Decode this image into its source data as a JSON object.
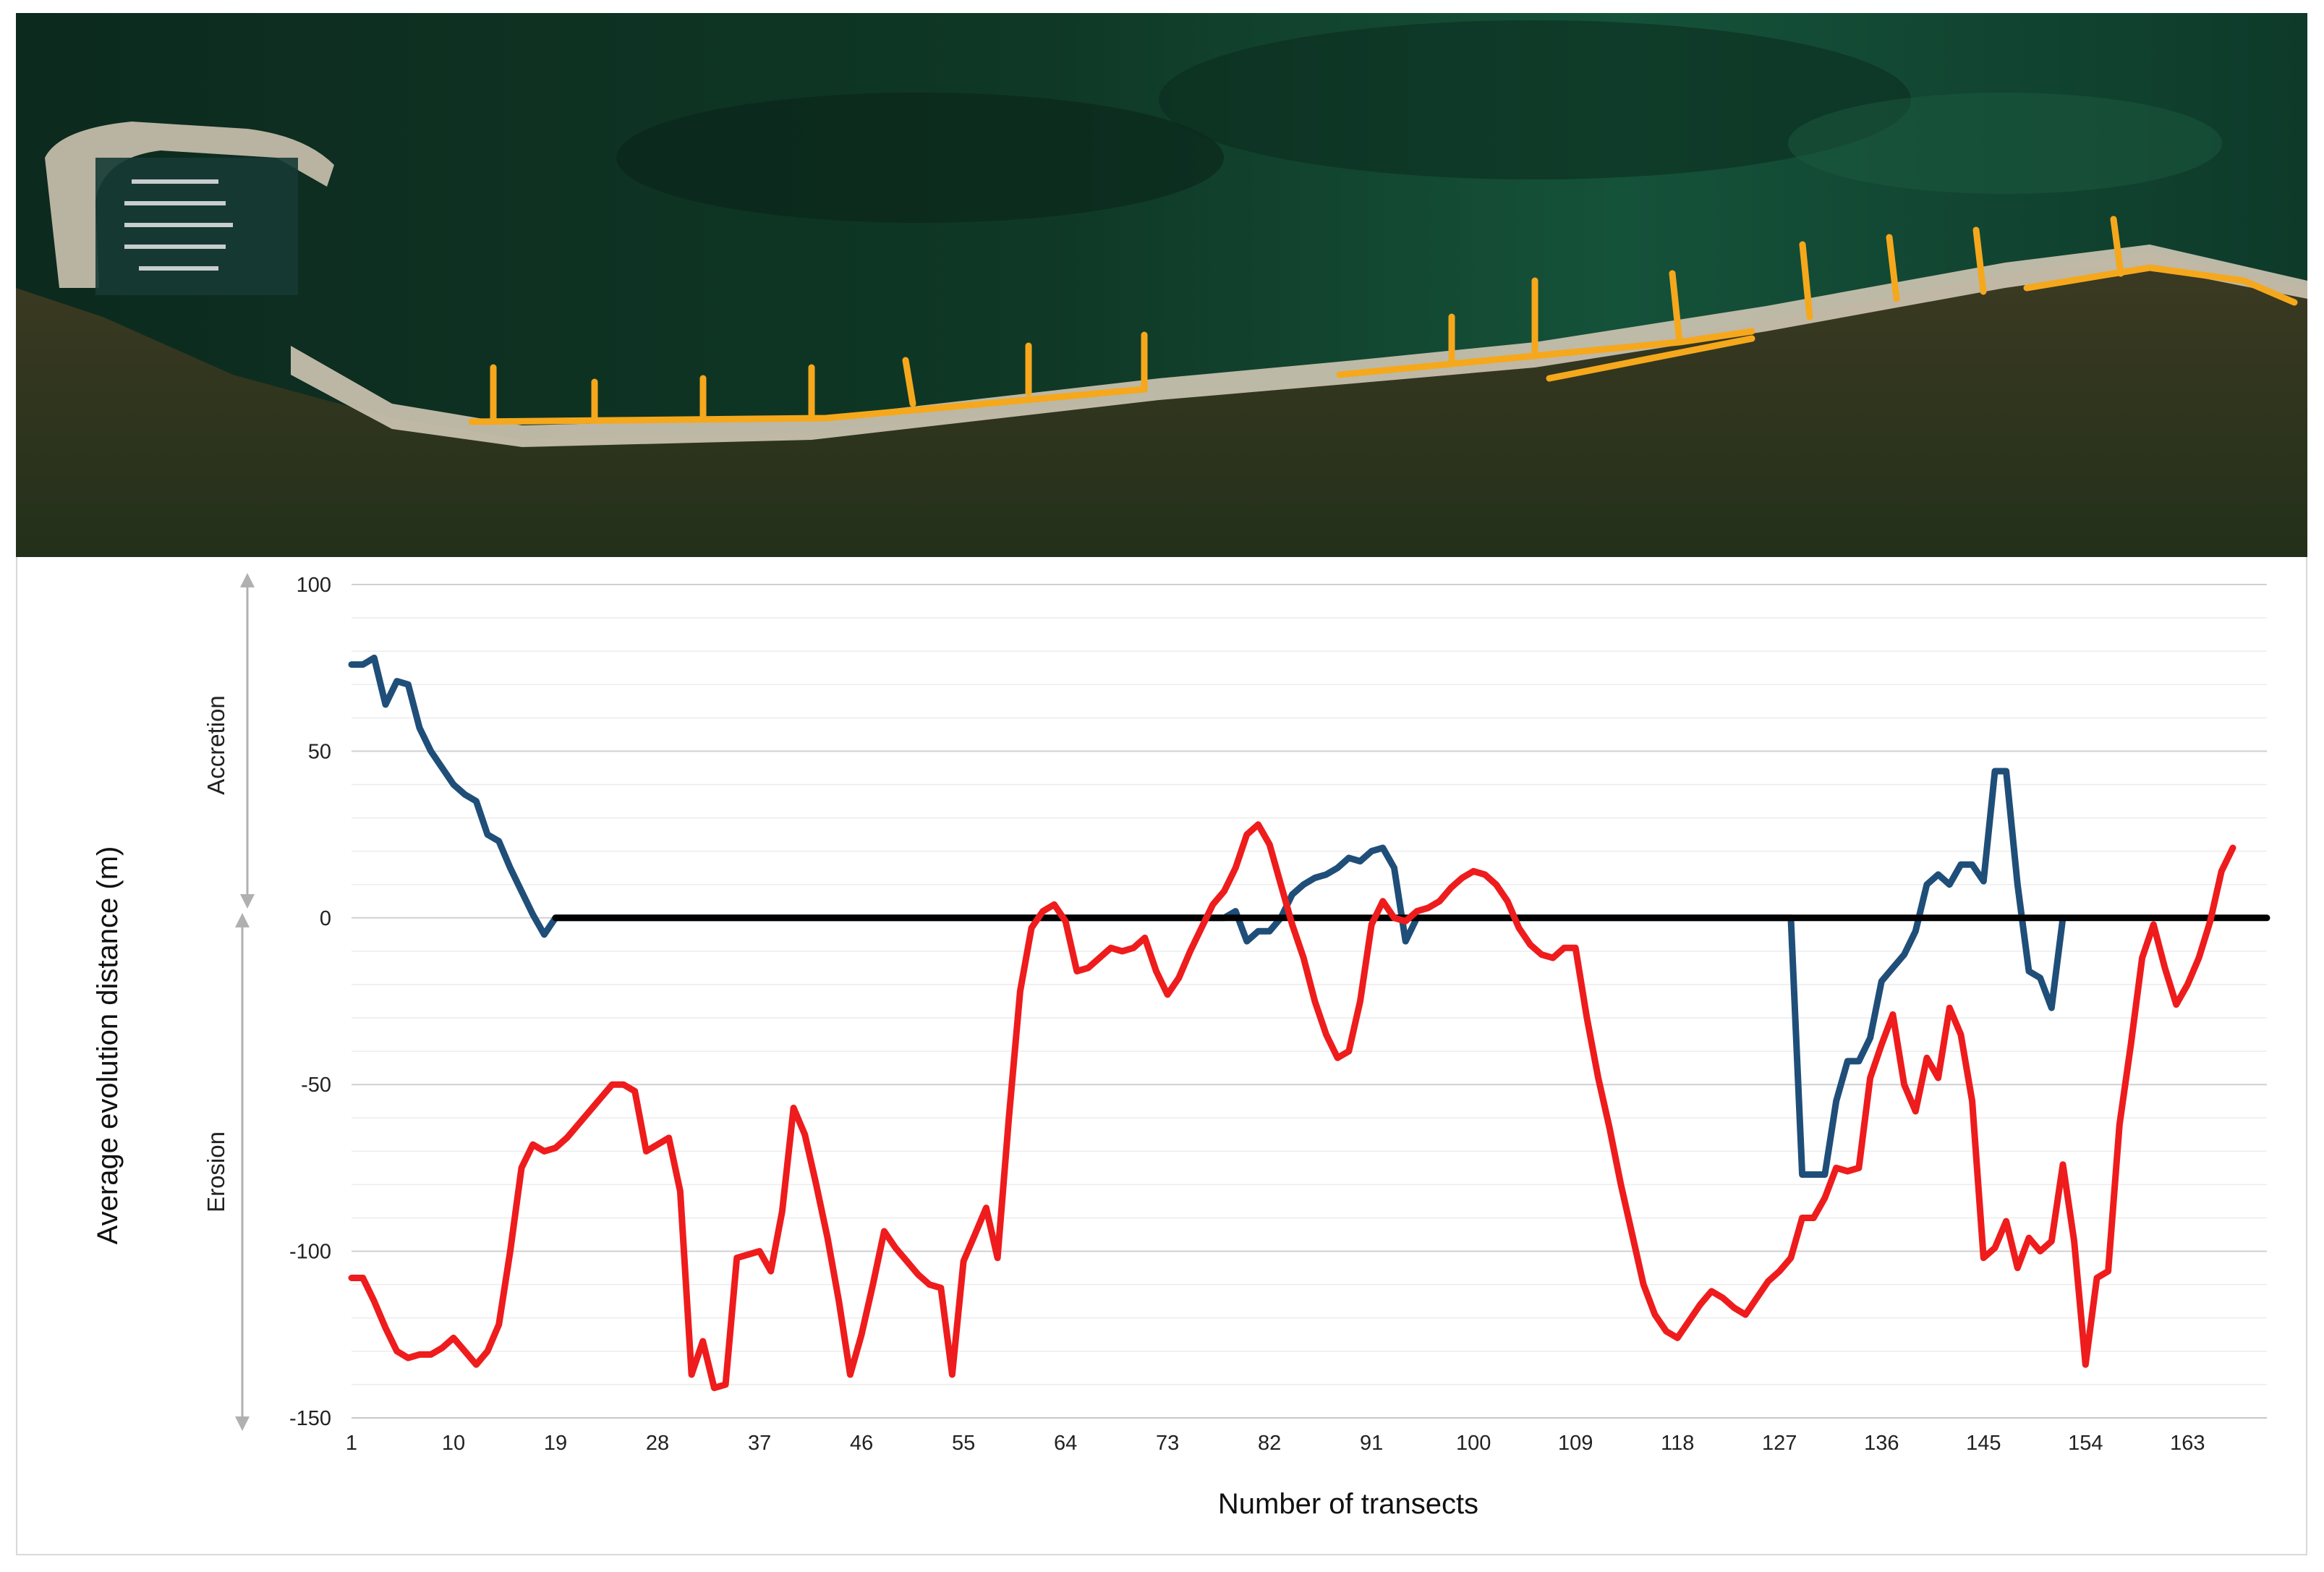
{
  "chart_data": {
    "type": "line",
    "xlabel": "Number of transects",
    "ylabel": "Average evolution distance (m)",
    "annotations": {
      "upper": "Accretion",
      "lower": "Erosion"
    },
    "ylim": [
      -150,
      100
    ],
    "yticks": [
      100,
      50,
      0,
      -50,
      -100,
      -150
    ],
    "xlim": [
      1,
      170
    ],
    "xticks": [
      1,
      10,
      19,
      28,
      37,
      46,
      55,
      64,
      73,
      82,
      91,
      100,
      109,
      118,
      127,
      136,
      145,
      154,
      163
    ],
    "grid": true,
    "legend": "none",
    "series": [
      {
        "color": "#1f4e79",
        "points": [
          [
            1,
            76
          ],
          [
            2,
            76
          ],
          [
            3,
            78
          ],
          [
            4,
            64
          ],
          [
            5,
            71
          ],
          [
            6,
            70
          ],
          [
            7,
            57
          ],
          [
            8,
            50
          ],
          [
            9,
            45
          ],
          [
            10,
            40
          ],
          [
            11,
            37
          ],
          [
            12,
            35
          ],
          [
            13,
            25
          ],
          [
            14,
            23
          ],
          [
            15,
            15
          ],
          [
            16,
            8
          ],
          [
            17,
            1
          ],
          [
            18,
            -5
          ],
          [
            19,
            0
          ],
          [
            78,
            0
          ],
          [
            79,
            2
          ],
          [
            80,
            -7
          ],
          [
            81,
            -4
          ],
          [
            82,
            -4
          ],
          [
            83,
            0
          ],
          [
            84,
            7
          ],
          [
            85,
            10
          ],
          [
            86,
            12
          ],
          [
            87,
            13
          ],
          [
            88,
            15
          ],
          [
            89,
            18
          ],
          [
            90,
            17
          ],
          [
            91,
            20
          ],
          [
            92,
            21
          ],
          [
            93,
            15
          ],
          [
            94,
            -7
          ],
          [
            95,
            0
          ],
          [
            128,
            0
          ],
          [
            129,
            -77
          ],
          [
            130,
            -77
          ],
          [
            131,
            -77
          ],
          [
            132,
            -55
          ],
          [
            133,
            -43
          ],
          [
            134,
            -43
          ],
          [
            135,
            -36
          ],
          [
            136,
            -19
          ],
          [
            137,
            -15
          ],
          [
            138,
            -11
          ],
          [
            139,
            -4
          ],
          [
            140,
            10
          ],
          [
            141,
            13
          ],
          [
            142,
            10
          ],
          [
            143,
            16
          ],
          [
            144,
            16
          ],
          [
            145,
            11
          ],
          [
            146,
            44
          ],
          [
            147,
            44
          ],
          [
            148,
            10
          ],
          [
            149,
            -16
          ],
          [
            150,
            -18
          ],
          [
            151,
            -27
          ],
          [
            152,
            0
          ]
        ]
      },
      {
        "color": "#000000",
        "points": [
          [
            19,
            0
          ],
          [
            78,
            0
          ],
          [
            95,
            0
          ],
          [
            128,
            0
          ],
          [
            152,
            0
          ],
          [
            170,
            0
          ]
        ]
      },
      {
        "color": "#ee1c1c",
        "points": [
          [
            1,
            -108
          ],
          [
            2,
            -108
          ],
          [
            3,
            -115
          ],
          [
            4,
            -123
          ],
          [
            5,
            -130
          ],
          [
            6,
            -132
          ],
          [
            7,
            -131
          ],
          [
            8,
            -131
          ],
          [
            9,
            -129
          ],
          [
            10,
            -126
          ],
          [
            11,
            -130
          ],
          [
            12,
            -134
          ],
          [
            13,
            -130
          ],
          [
            14,
            -122
          ],
          [
            15,
            -100
          ],
          [
            16,
            -75
          ],
          [
            17,
            -68
          ],
          [
            18,
            -70
          ],
          [
            19,
            -69
          ],
          [
            20,
            -66
          ],
          [
            21,
            -62
          ],
          [
            22,
            -58
          ],
          [
            23,
            -54
          ],
          [
            24,
            -50
          ],
          [
            25,
            -50
          ],
          [
            26,
            -52
          ],
          [
            27,
            -70
          ],
          [
            28,
            -68
          ],
          [
            29,
            -66
          ],
          [
            30,
            -82
          ],
          [
            31,
            -137
          ],
          [
            32,
            -127
          ],
          [
            33,
            -141
          ],
          [
            34,
            -140
          ],
          [
            35,
            -102
          ],
          [
            36,
            -101
          ],
          [
            37,
            -100
          ],
          [
            38,
            -106
          ],
          [
            39,
            -88
          ],
          [
            40,
            -57
          ],
          [
            41,
            -65
          ],
          [
            42,
            -80
          ],
          [
            43,
            -96
          ],
          [
            44,
            -115
          ],
          [
            45,
            -137
          ],
          [
            46,
            -125
          ],
          [
            47,
            -110
          ],
          [
            48,
            -94
          ],
          [
            49,
            -99
          ],
          [
            50,
            -103
          ],
          [
            51,
            -107
          ],
          [
            52,
            -110
          ],
          [
            53,
            -111
          ],
          [
            54,
            -137
          ],
          [
            55,
            -103
          ],
          [
            56,
            -95
          ],
          [
            57,
            -87
          ],
          [
            58,
            -102
          ],
          [
            59,
            -60
          ],
          [
            60,
            -22
          ],
          [
            61,
            -3
          ],
          [
            62,
            2
          ],
          [
            63,
            4
          ],
          [
            64,
            -1
          ],
          [
            65,
            -16
          ],
          [
            66,
            -15
          ],
          [
            67,
            -12
          ],
          [
            68,
            -9
          ],
          [
            69,
            -10
          ],
          [
            70,
            -9
          ],
          [
            71,
            -6
          ],
          [
            72,
            -16
          ],
          [
            73,
            -23
          ],
          [
            74,
            -18
          ],
          [
            75,
            -10
          ],
          [
            76,
            -3
          ],
          [
            77,
            4
          ],
          [
            78,
            8
          ],
          [
            79,
            15
          ],
          [
            80,
            25
          ],
          [
            81,
            28
          ],
          [
            82,
            22
          ],
          [
            83,
            10
          ],
          [
            84,
            -2
          ],
          [
            85,
            -12
          ],
          [
            86,
            -25
          ],
          [
            87,
            -35
          ],
          [
            88,
            -42
          ],
          [
            89,
            -40
          ],
          [
            90,
            -25
          ],
          [
            91,
            -2
          ],
          [
            92,
            5
          ],
          [
            93,
            0
          ],
          [
            94,
            -1
          ],
          [
            95,
            2
          ],
          [
            96,
            3
          ],
          [
            97,
            5
          ],
          [
            98,
            9
          ],
          [
            99,
            12
          ],
          [
            100,
            14
          ],
          [
            101,
            13
          ],
          [
            102,
            10
          ],
          [
            103,
            5
          ],
          [
            104,
            -3
          ],
          [
            105,
            -8
          ],
          [
            106,
            -11
          ],
          [
            107,
            -12
          ],
          [
            108,
            -9
          ],
          [
            109,
            -9
          ],
          [
            110,
            -30
          ],
          [
            111,
            -48
          ],
          [
            112,
            -63
          ],
          [
            113,
            -80
          ],
          [
            114,
            -95
          ],
          [
            115,
            -110
          ],
          [
            116,
            -119
          ],
          [
            117,
            -124
          ],
          [
            118,
            -126
          ],
          [
            119,
            -121
          ],
          [
            120,
            -116
          ],
          [
            121,
            -112
          ],
          [
            122,
            -114
          ],
          [
            123,
            -117
          ],
          [
            124,
            -119
          ],
          [
            125,
            -114
          ],
          [
            126,
            -109
          ],
          [
            127,
            -106
          ],
          [
            128,
            -102
          ],
          [
            129,
            -90
          ],
          [
            130,
            -90
          ],
          [
            131,
            -84
          ],
          [
            132,
            -75
          ],
          [
            133,
            -76
          ],
          [
            134,
            -75
          ],
          [
            135,
            -48
          ],
          [
            136,
            -38
          ],
          [
            137,
            -29
          ],
          [
            138,
            -50
          ],
          [
            139,
            -58
          ],
          [
            140,
            -42
          ],
          [
            141,
            -48
          ],
          [
            142,
            -27
          ],
          [
            143,
            -35
          ],
          [
            144,
            -55
          ],
          [
            145,
            -102
          ],
          [
            146,
            -99
          ],
          [
            147,
            -91
          ],
          [
            148,
            -105
          ],
          [
            149,
            -96
          ],
          [
            150,
            -100
          ],
          [
            151,
            -97
          ],
          [
            152,
            -74
          ],
          [
            153,
            -97
          ],
          [
            154,
            -134
          ],
          [
            155,
            -108
          ],
          [
            156,
            -106
          ],
          [
            157,
            -62
          ],
          [
            158,
            -38
          ],
          [
            159,
            -12
          ],
          [
            160,
            -2
          ],
          [
            161,
            -15
          ],
          [
            162,
            -26
          ],
          [
            163,
            -20
          ],
          [
            164,
            -12
          ],
          [
            165,
            -1
          ],
          [
            166,
            14
          ],
          [
            167,
            21
          ]
        ]
      }
    ]
  }
}
